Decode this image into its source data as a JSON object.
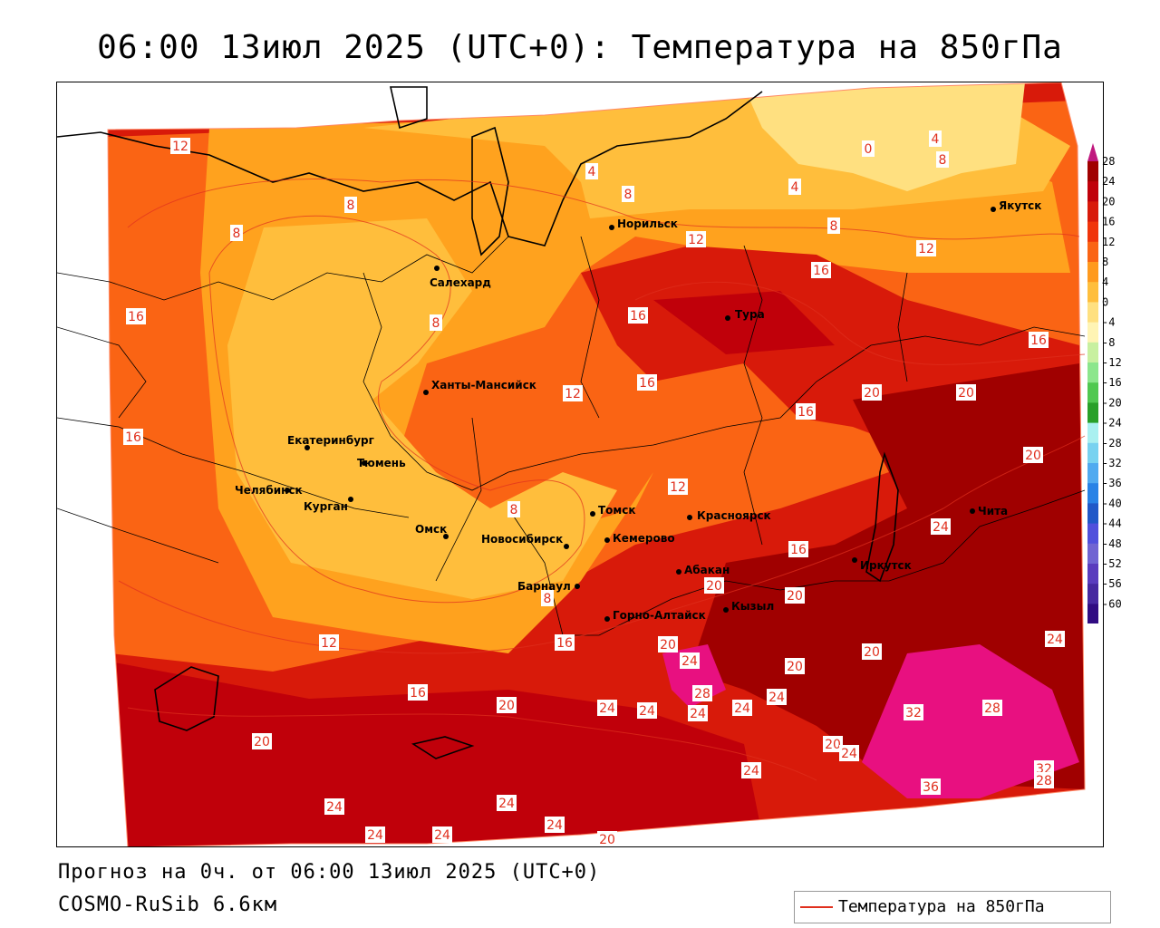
{
  "title": "06:00 13июл 2025 (UTC+0): Температура на 850гПа",
  "footer": {
    "forecast": "Прогноз на 0ч. от 06:00 13июл 2025 (UTC+0)",
    "model": "COSMO-RuSib 6.6км"
  },
  "legend": {
    "label": "Температура на 850гПа",
    "line_color": "#e0301e"
  },
  "colorbar": {
    "ticks": [
      "28",
      "24",
      "20",
      "16",
      "12",
      "8",
      "4",
      "0",
      "-4",
      "-8",
      "-12",
      "-16",
      "-20",
      "-24",
      "-28",
      "-32",
      "-36",
      "-40",
      "-44",
      "-48",
      "-52",
      "-56",
      "-60"
    ],
    "colors": [
      "#a00000",
      "#c0000a",
      "#d81a0a",
      "#f0340a",
      "#fa6414",
      "#ff9a1e",
      "#ffbe3c",
      "#ffe080",
      "#fff4b4",
      "#c8f0a0",
      "#8ce68c",
      "#50c850",
      "#28a028",
      "#aaf0f0",
      "#78d2f0",
      "#50aaf0",
      "#2882e6",
      "#2058c8",
      "#5050dc",
      "#7064d2",
      "#5a3cbe",
      "#4628a0",
      "#300c82"
    ],
    "top_color": "#c0187e",
    "bottom_color": "#8020c0"
  },
  "cities": [
    {
      "name": "Якутск"
    },
    {
      "name": "Норильск"
    },
    {
      "name": "Салехард"
    },
    {
      "name": "Тура"
    },
    {
      "name": "Ханты-Мансийск"
    },
    {
      "name": "Екатеринбург"
    },
    {
      "name": "Тюмень"
    },
    {
      "name": "Челябинск"
    },
    {
      "name": "Курган"
    },
    {
      "name": "Омск"
    },
    {
      "name": "Новосибирск"
    },
    {
      "name": "Томск"
    },
    {
      "name": "Кемерово"
    },
    {
      "name": "Красноярск"
    },
    {
      "name": "Барнаул"
    },
    {
      "name": "Абакан"
    },
    {
      "name": "Горно-Алтайск"
    },
    {
      "name": "Кызыл"
    },
    {
      "name": "Иркутск"
    },
    {
      "name": "Чита"
    }
  ],
  "contour_labels": [
    "12",
    "8",
    "8",
    "16",
    "16",
    "8",
    "4",
    "8",
    "0",
    "4",
    "8",
    "4",
    "8",
    "12",
    "16",
    "16",
    "12",
    "16",
    "16",
    "12",
    "12",
    "20",
    "20",
    "16",
    "20",
    "12",
    "8",
    "8",
    "12",
    "16",
    "16",
    "20",
    "20",
    "24",
    "24",
    "20",
    "20",
    "16",
    "20",
    "28",
    "24",
    "24",
    "32",
    "28",
    "20",
    "24",
    "24",
    "24",
    "24",
    "24",
    "20",
    "20",
    "20",
    "24",
    "24",
    "24",
    "20",
    "36",
    "32",
    "28",
    "28",
    "24",
    "24",
    "24",
    "20"
  ]
}
